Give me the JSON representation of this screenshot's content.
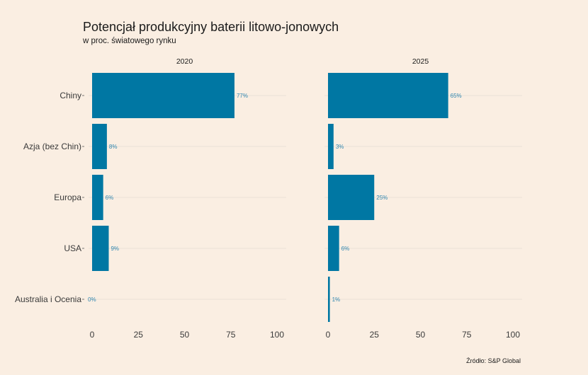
{
  "chart_data": {
    "type": "bar",
    "orientation": "horizontal",
    "title": "Potencjał produkcyjny baterii litowo-jonowych",
    "subtitle": "w proc. światowego rynku",
    "source": "Źródło: S&P Global",
    "categories": [
      "Chiny",
      "Azja (bez Chin)",
      "Europa",
      "USA",
      "Australia i Ocenia"
    ],
    "panels": [
      {
        "name": "2020",
        "values": [
          77,
          8,
          6,
          9,
          0
        ],
        "labels": [
          "77%",
          "8%",
          "6%",
          "9%",
          "0%"
        ]
      },
      {
        "name": "2025",
        "values": [
          65,
          3,
          25,
          6,
          1
        ],
        "labels": [
          "65%",
          "3%",
          "25%",
          "6%",
          "1%"
        ]
      }
    ],
    "xlim": [
      0,
      100
    ],
    "xticks": [
      "0",
      "25",
      "50",
      "75",
      "100"
    ],
    "grid": true,
    "bar_color": "#0077a3",
    "label_color": "#2f86b0",
    "background": "#faeee2"
  }
}
